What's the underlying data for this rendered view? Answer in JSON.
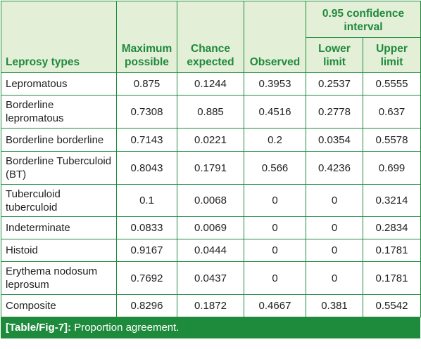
{
  "header": {
    "col_type": "Leprosy types",
    "col_max": "Maximum possible",
    "col_chance": "Chance expected",
    "col_observed": "Observed",
    "ci_group": "0.95 confidence interval",
    "col_lower": "Lower limit",
    "col_upper": "Upper limit"
  },
  "rows": [
    {
      "type": "Lepromatous",
      "max": "0.875",
      "chance": "0.1244",
      "observed": "0.3953",
      "lower": "0.2537",
      "upper": "0.5555"
    },
    {
      "type": "Borderline lepromatous",
      "max": "0.7308",
      "chance": "0.885",
      "observed": "0.4516",
      "lower": "0.2778",
      "upper": "0.637"
    },
    {
      "type": "Borderline borderline",
      "max": "0.7143",
      "chance": "0.0221",
      "observed": "0.2",
      "lower": "0.0354",
      "upper": "0.5578"
    },
    {
      "type": "Borderline Tuberculoid (BT)",
      "max": "0.8043",
      "chance": "0.1791",
      "observed": "0.566",
      "lower": "0.4236",
      "upper": "0.699"
    },
    {
      "type": "Tuberculoid tuberculoid",
      "max": "0.1",
      "chance": "0.0068",
      "observed": "0",
      "lower": "0",
      "upper": "0.3214"
    },
    {
      "type": "Indeterminate",
      "max": "0.0833",
      "chance": "0.0069",
      "observed": "0",
      "lower": "0",
      "upper": "0.2834"
    },
    {
      "type": "Histoid",
      "max": "0.9167",
      "chance": "0.0444",
      "observed": "0",
      "lower": "0",
      "upper": "0.1781"
    },
    {
      "type": "Erythema nodosum leprosum",
      "max": "0.7692",
      "chance": "0.0437",
      "observed": "0",
      "lower": "0",
      "upper": "0.1781"
    },
    {
      "type": "Composite",
      "max": "0.8296",
      "chance": "0.1872",
      "observed": "0.4667",
      "lower": "0.381",
      "upper": "0.5542"
    }
  ],
  "caption": {
    "label": "[Table/Fig-7]:",
    "text": "Proportion agreement."
  },
  "colors": {
    "accent": "#1e8a3c",
    "header_bg": "#e4efd7"
  }
}
